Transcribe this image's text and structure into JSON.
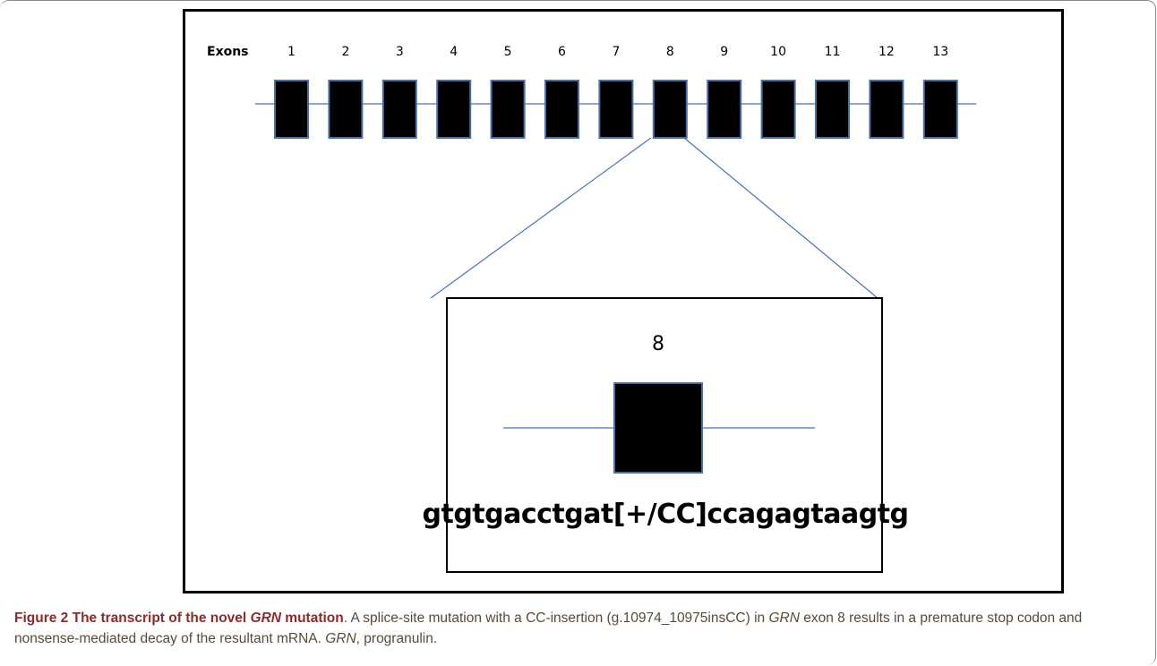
{
  "diagram": {
    "exons_label": "Exons",
    "exon_numbers": [
      "1",
      "2",
      "3",
      "4",
      "5",
      "6",
      "7",
      "8",
      "9",
      "10",
      "11",
      "12",
      "13"
    ],
    "zoomed_exon_number": "8",
    "sequence": "gtgtgacctgat[+/CC]ccagagtaagtg",
    "colors": {
      "exon_fill": "#000000",
      "exon_border": "#4a6fa5",
      "line": "#4a72b8"
    }
  },
  "caption": {
    "title_pre": "Figure 2 The transcript of the novel ",
    "title_gene": "GRN",
    "title_post": " mutation",
    "body_1": ". A splice-site mutation with a CC-insertion (g.10974_10975insCC) in ",
    "body_gene_1": "GRN",
    "body_2": " exon 8 results in a premature stop codon and nonsense-mediated decay of the resultant mRNA. ",
    "body_gene_2": "GRN",
    "body_3": ", progranulin."
  }
}
